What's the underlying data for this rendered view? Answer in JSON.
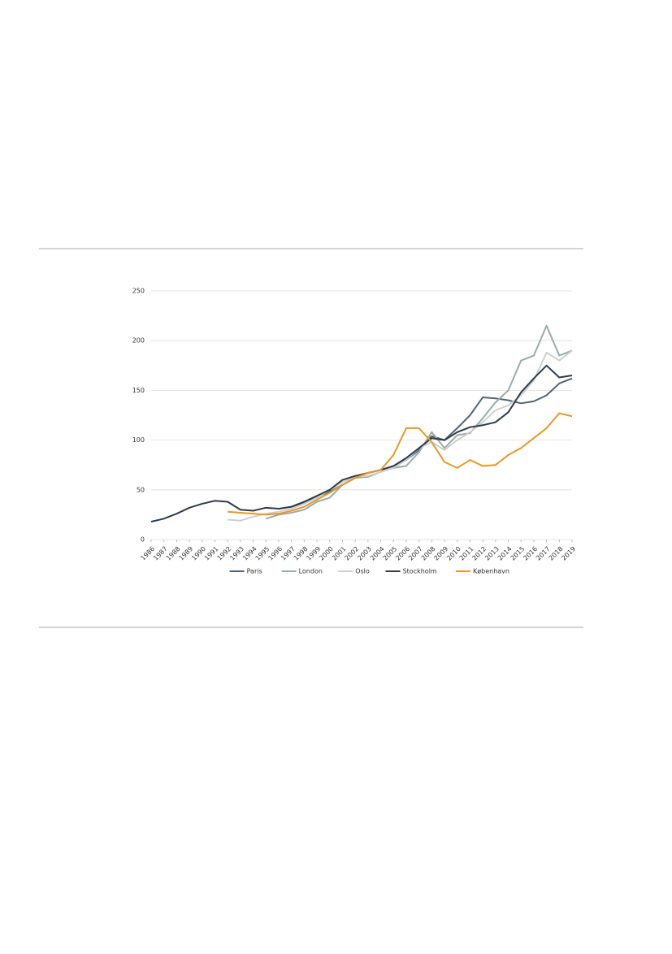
{
  "chart_data": {
    "type": "line",
    "x": [
      1986,
      1987,
      1988,
      1989,
      1990,
      1991,
      1992,
      1993,
      1994,
      1995,
      1996,
      1997,
      1998,
      1999,
      2000,
      2001,
      2002,
      2003,
      2004,
      2005,
      2006,
      2007,
      2008,
      2009,
      2010,
      2011,
      2012,
      2013,
      2014,
      2015,
      2016,
      2017,
      2018,
      2019
    ],
    "series": [
      {
        "name": "Paris",
        "color": "#4f6475",
        "values": [
          null,
          null,
          null,
          null,
          null,
          null,
          null,
          null,
          null,
          null,
          31,
          33,
          37,
          43,
          48,
          55,
          62,
          67,
          70,
          74,
          80,
          90,
          104,
          100,
          112,
          125,
          143,
          142,
          140,
          137,
          139,
          145,
          157,
          162
        ]
      },
      {
        "name": "London",
        "color": "#9aabab",
        "values": [
          null,
          null,
          null,
          null,
          null,
          null,
          null,
          null,
          null,
          21,
          25,
          27,
          30,
          38,
          42,
          55,
          62,
          63,
          68,
          72,
          74,
          88,
          108,
          92,
          105,
          107,
          122,
          138,
          150,
          180,
          185,
          215,
          185,
          190
        ]
      },
      {
        "name": "Oslo",
        "color": "#cdd0cc",
        "values": [
          null,
          null,
          null,
          null,
          null,
          null,
          20,
          19,
          23,
          26,
          28,
          31,
          36,
          42,
          50,
          58,
          63,
          64,
          68,
          72,
          80,
          92,
          98,
          90,
          100,
          108,
          118,
          130,
          135,
          145,
          160,
          188,
          180,
          190
        ]
      },
      {
        "name": "Stockholm",
        "color": "#2e3c4e",
        "values": [
          18,
          21,
          26,
          32,
          36,
          39,
          38,
          30,
          29,
          32,
          31,
          33,
          38,
          44,
          50,
          60,
          64,
          67,
          70,
          74,
          82,
          92,
          102,
          100,
          108,
          113,
          115,
          118,
          128,
          148,
          162,
          175,
          163,
          165
        ]
      },
      {
        "name": "København",
        "color": "#e89a1e",
        "values": [
          null,
          null,
          null,
          null,
          null,
          null,
          28,
          27,
          26,
          25,
          26,
          29,
          33,
          40,
          47,
          55,
          62,
          67,
          70,
          85,
          112,
          112,
          98,
          78,
          72,
          80,
          74,
          75,
          85,
          92,
          102,
          112,
          127,
          124
        ]
      }
    ],
    "xlim": [
      1986,
      2019
    ],
    "xticks": [
      1986,
      1987,
      1988,
      1989,
      1990,
      1991,
      1992,
      1993,
      1994,
      1995,
      1996,
      1997,
      1998,
      1999,
      2000,
      2001,
      2002,
      2003,
      2004,
      2005,
      2006,
      2007,
      2008,
      2009,
      2010,
      2011,
      2012,
      2013,
      2014,
      2015,
      2016,
      2017,
      2018,
      2019
    ],
    "ylim": [
      0,
      250
    ],
    "yticks": [
      0,
      50,
      100,
      150,
      200,
      250
    ],
    "grid": true,
    "legend": "bottom"
  }
}
